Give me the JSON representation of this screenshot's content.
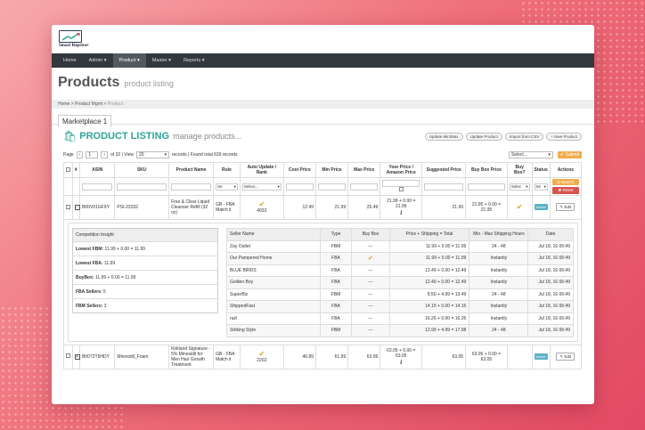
{
  "app": {
    "logo_text": "Smart Repricer"
  },
  "nav": [
    "Home",
    "Admin",
    "Product",
    "Master",
    "Reports"
  ],
  "nav_active": "Product",
  "page": {
    "title": "Products",
    "subtitle": "product listing"
  },
  "breadcrumb": [
    "Home",
    "Product Mgmt",
    "Product"
  ],
  "tab": "Marketplace 1",
  "listing": {
    "title": "PRODUCT LISTING",
    "subtitle": "manage products...",
    "buttons": [
      "Update Min/Max",
      "Update Product",
      "Import from CSV",
      "+ New Product"
    ]
  },
  "pager": {
    "page_label": "Page",
    "page": "1",
    "of": "of 32 | View",
    "view": "20",
    "records": "records | Found total 639 records",
    "select": "Select...",
    "submit": "✔ Submit"
  },
  "columns": [
    "#",
    "ASIN",
    "SKU",
    "Product Name",
    "Rule",
    "Auto Update / Rank",
    "Cost Price",
    "Min Price",
    "Max Price",
    "Your Price / Amazon Price",
    "Suggested Price",
    "Buy Box Price",
    "Buy Box?",
    "Status",
    "Actions"
  ],
  "filters": {
    "rule": "Se",
    "auto": "Select...",
    "buybox": "Selec",
    "status": "Se",
    "search": "Q Search",
    "reset": "✖ Reset"
  },
  "rows": [
    {
      "asin": "B00V01GF9Y",
      "sku": "PSI-22032",
      "name": "Free & Clear Liquid Cleanser Refill (32 oz)",
      "rule": "GB - FBA Match it",
      "rank": "4933",
      "cost": "12.49",
      "min": "21.99",
      "max": "25.49",
      "your": "21.99 + 0.00 = 21.99",
      "suggested": "21.99",
      "buybox": "21.95 + 0.00 = 21.95",
      "status": "Active",
      "edit": "✎ Edit"
    },
    {
      "asin": "B0072T5HDY",
      "sku": "Minoxidil_Foam",
      "name": "Kirkland Signature - 5% Minoxidil for Men Hair Growth Treatment",
      "rule": "GB - FBA Match it",
      "rank": "2202",
      "cost": "46.89",
      "min": "61.99",
      "max": "63.99",
      "your": "63.05 + 0.00 = 63.05",
      "suggested": "63.05",
      "buybox": "63.05 + 0.00 = 63.05",
      "status": "Active",
      "edit": "✎ Edit"
    }
  ],
  "competition": {
    "title": "Competition Insight",
    "items": [
      {
        "label": "Lowest FBM:",
        "value": "11.99 + 0.00 = 11.99"
      },
      {
        "label": "Lowest FBA:",
        "value": "11.99"
      },
      {
        "label": "BuyBox:",
        "value": "11.99 + 0.00 = 11.99"
      },
      {
        "label": "FBA Sellers:",
        "value": "5"
      },
      {
        "label": "FBM Sellers:",
        "value": "3"
      }
    ]
  },
  "sellers": {
    "headers": [
      "Seller Name",
      "Type",
      "Buy Box",
      "Price + Shipping = Total",
      "Min - Max Shipping Hours",
      "Date"
    ],
    "rows": [
      [
        "Zay Outlet",
        "FBM",
        "---",
        "11.99 + 0.00 = 11.99",
        "24 - 48",
        "Jul 18, 16 06:49"
      ],
      [
        "Our Pampered Home",
        "FBA",
        "✔",
        "11.99 + 0.00 = 11.99",
        "Instantly",
        "Jul 18, 16 06:49"
      ],
      [
        "BLUE BIRDS",
        "FBA",
        "---",
        "12.49 + 0.00 = 12.49",
        "Instantly",
        "Jul 18, 16 06:49"
      ],
      [
        "Golden Boy",
        "FBA",
        "---",
        "12.49 + 0.00 = 12.49",
        "Instantly",
        "Jul 18, 16 06:49"
      ],
      [
        "SuperBiz",
        "FBM",
        "---",
        "8.50 + 4.99 = 13.49",
        "24 - 48",
        "Jul 18, 16 06:49"
      ],
      [
        "ShippedFast",
        "FBA",
        "---",
        "14.15 + 0.00 = 14.15",
        "Instantly",
        "Jul 18, 16 06:49"
      ],
      [
        "null",
        "FBA",
        "---",
        "16.26 + 0.00 = 16.26",
        "Instantly",
        "Jul 18, 16 06:49"
      ],
      [
        "Striking Style",
        "FBM",
        "---",
        "12.99 + 4.99 = 17.98",
        "24 - 48",
        "Jul 18, 16 06:49"
      ]
    ]
  }
}
